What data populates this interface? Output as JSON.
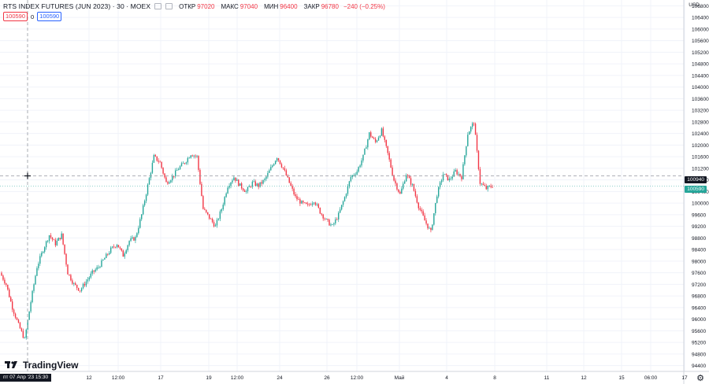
{
  "legend": {
    "symbol": "RTS INDEX FUTURES (JUN 2023) · 30 · MOEX",
    "open_label": "ОТКР",
    "open": "97020",
    "high_label": "МАКС",
    "high": "97040",
    "low_label": "МИН",
    "low": "96400",
    "close_label": "ЗАКР",
    "close": "96780",
    "change": "−240 (−0.25%)"
  },
  "quote": {
    "bid": "100590",
    "spread": "0",
    "ask": "100590"
  },
  "currency": "USD",
  "crosshair": {
    "time_label": "пт 07 Апр '23   15:30",
    "price_label": "100940"
  },
  "last_price_label": "100590",
  "logo_text": "TradingView",
  "colors": {
    "up": "#26a69a",
    "down": "#f23645",
    "grid": "#f0f3fa",
    "text": "#131722"
  },
  "icons": [
    "tradingview-logo-icon",
    "gear-icon",
    "target-icon",
    "crosshair-icon",
    "settings-icon"
  ],
  "chart_data": {
    "type": "line",
    "title": "RTS INDEX FUTURES (JUN 2023) · 30 · MOEX",
    "ylabel": "USD",
    "ylim": [
      94200,
      107000
    ],
    "y_ticks": [
      94400,
      94800,
      95200,
      95600,
      96000,
      96400,
      96800,
      97200,
      97600,
      98000,
      98400,
      98800,
      99200,
      99600,
      100000,
      100400,
      100800,
      101200,
      101600,
      102000,
      102400,
      102800,
      103200,
      103600,
      104000,
      104400,
      104800,
      105200,
      105600,
      106000,
      106400,
      106800
    ],
    "x_ticks": [
      "12",
      "12:00",
      "17",
      "19",
      "12:00",
      "24",
      "26",
      "12:00",
      "Май",
      "4",
      "8",
      "11",
      "12",
      "15",
      "06:00",
      "17"
    ],
    "series": [
      {
        "values": [
          97600,
          97200,
          96400,
          95800,
          95300,
          96600,
          97800,
          98400,
          98900,
          98600,
          98900,
          97600,
          97200,
          97000,
          97300,
          97600,
          97800,
          98100,
          98400,
          98600,
          98200,
          98700,
          98800,
          99600,
          100600,
          101600,
          101400,
          100700,
          100900,
          101200,
          101400,
          101700,
          101600,
          99800,
          99500,
          99200,
          99800,
          100600,
          100900,
          100600,
          100400,
          100700,
          100600,
          100800,
          101200,
          101600,
          101200,
          100700,
          100200,
          100000,
          99900,
          100100,
          99700,
          99400,
          99200,
          99600,
          100200,
          100900,
          101100,
          101600,
          102400,
          102100,
          102500,
          101700,
          100800,
          100300,
          101000,
          100600,
          99900,
          99400,
          99000,
          100300,
          101000,
          100800,
          101100,
          100900,
          102400,
          102800,
          100700,
          100500,
          100600
        ]
      }
    ]
  }
}
